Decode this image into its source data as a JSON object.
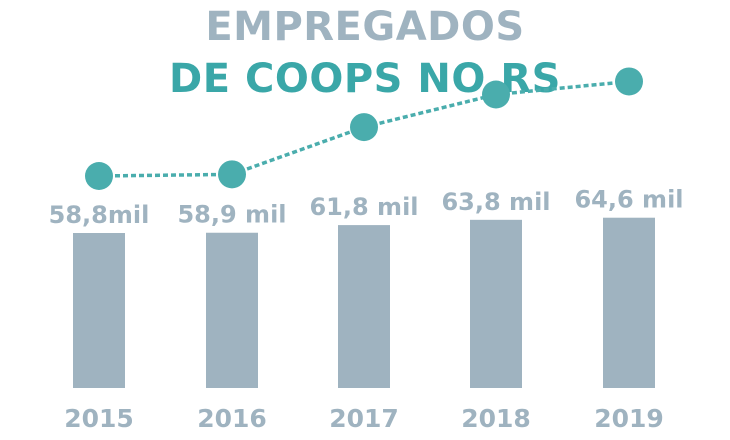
{
  "title_line_1": "EMPREGADOS",
  "title_line_2": "DE COOPS NO RS",
  "colors": {
    "title_primary": "#9fb3c0",
    "title_accent": "#3aa7a8",
    "bar": "#9fb3c0",
    "line": "#4aadad",
    "label": "#9fb3c0"
  },
  "chart_data": {
    "type": "bar",
    "categories": [
      "2015",
      "2016",
      "2017",
      "2018",
      "2019"
    ],
    "values": [
      58.8,
      58.9,
      61.8,
      63.8,
      64.6
    ],
    "value_labels": [
      "58,8mil",
      "58,9 mil",
      "61,8 mil",
      "63,8 mil",
      "64,6 mil"
    ],
    "overlay": {
      "type": "line",
      "style": "dashed",
      "markers": "circle"
    },
    "title": "EMPREGADOS DE COOPS NO RS",
    "xlabel": "",
    "ylabel": "",
    "grid": false,
    "legend": false
  }
}
